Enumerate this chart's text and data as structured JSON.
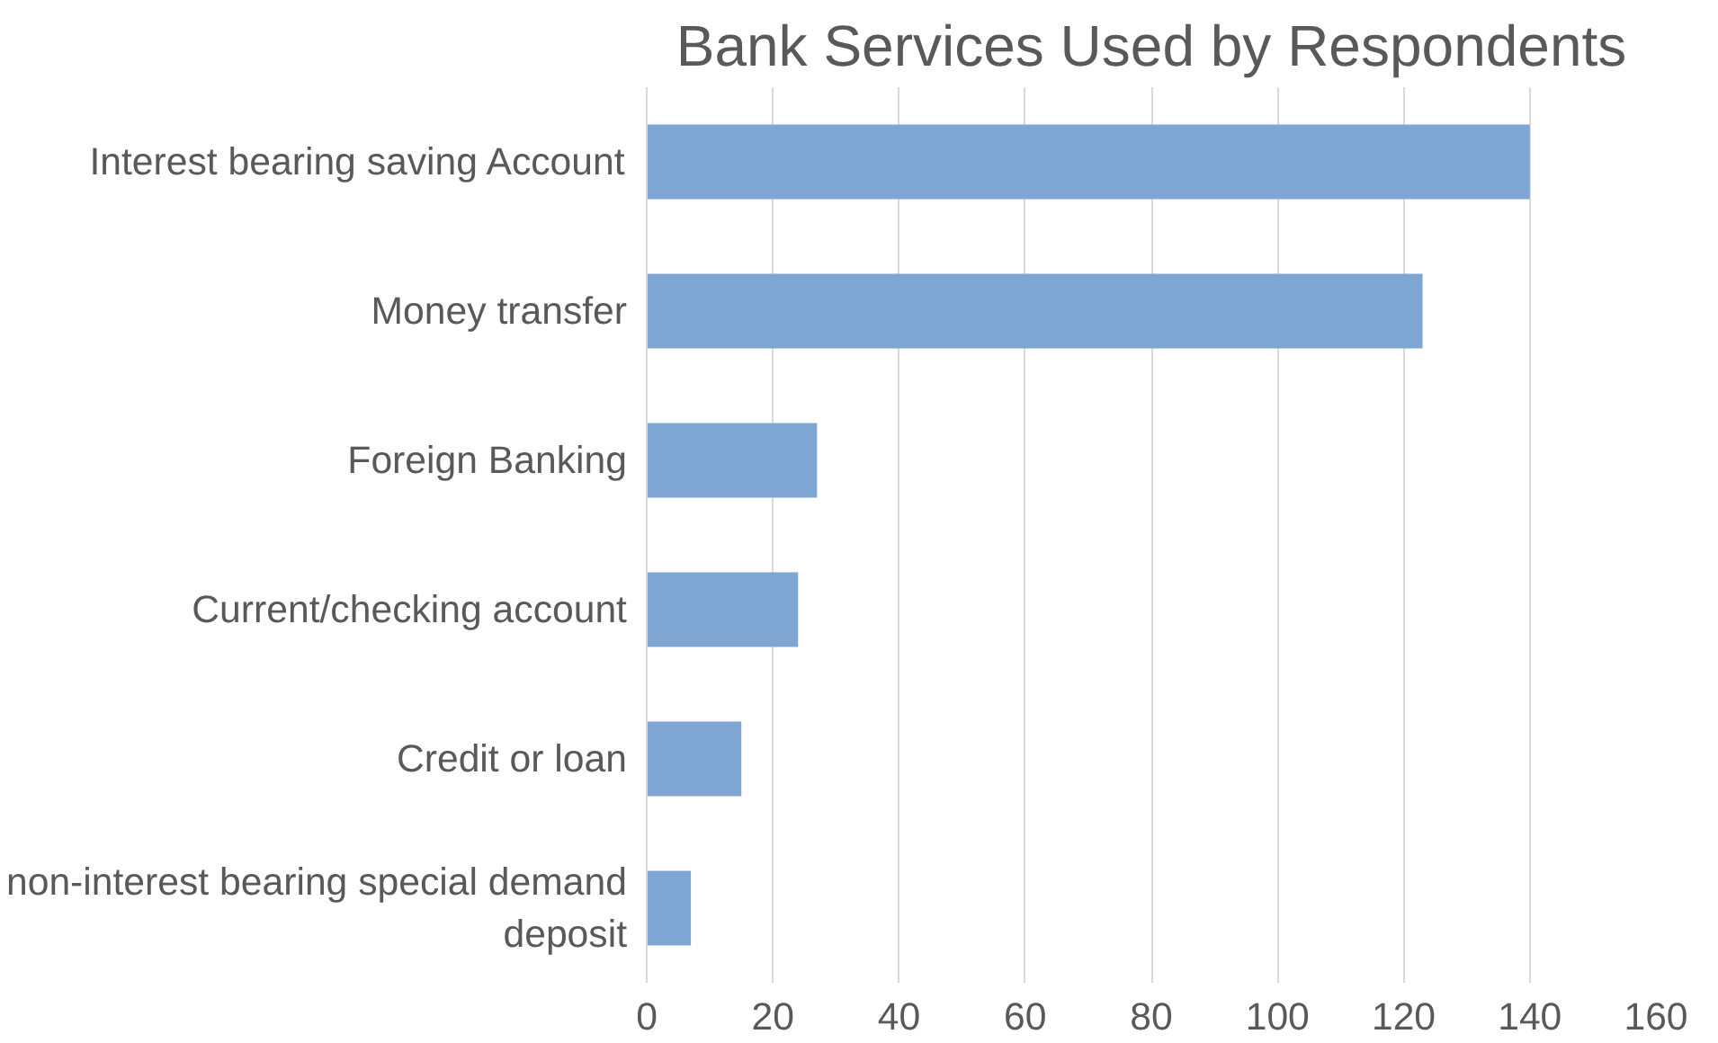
{
  "chart_data": {
    "type": "bar",
    "orientation": "horizontal",
    "title": "Bank Services Used by Respondents",
    "categories": [
      "Interest bearing saving Account",
      "Money transfer",
      "Foreign Banking",
      "Current/checking account",
      "Credit or loan",
      "non-interest bearing special demand deposit"
    ],
    "values": [
      140,
      123,
      27,
      24,
      15,
      7
    ],
    "color": "#7fa6d3",
    "xlim": [
      0,
      160
    ],
    "xticks": [
      0,
      20,
      40,
      60,
      80,
      100,
      120,
      140,
      160
    ],
    "grid": "x"
  }
}
